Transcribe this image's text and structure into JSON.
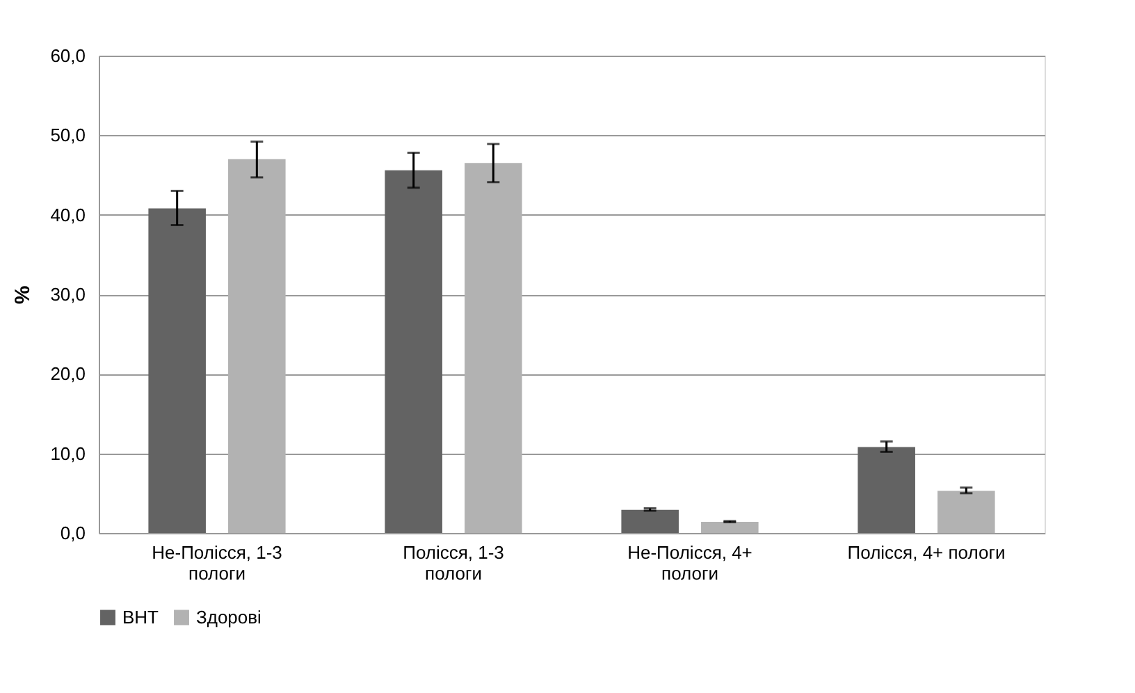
{
  "chart_data": {
    "type": "bar",
    "ylabel": "%",
    "categories": [
      "Не-Полісся, 1-3 пологи",
      "Полісся, 1-3 пологи",
      "Не-Полісся, 4+ пологи",
      "Полісся, 4+ пологи"
    ],
    "series": [
      {
        "name": "ВНТ",
        "color": "#636363",
        "values": [
          40.8,
          45.6,
          2.9,
          10.8
        ],
        "errors": [
          [
            38.7,
            43.0
          ],
          [
            43.4,
            47.8
          ],
          [
            2.8,
            3.1
          ],
          [
            10.2,
            11.5
          ]
        ]
      },
      {
        "name": "Здорові",
        "color": "#b2b2b2",
        "values": [
          47.0,
          46.5,
          1.4,
          5.3
        ],
        "errors": [
          [
            44.7,
            49.2
          ],
          [
            44.1,
            48.9
          ],
          [
            1.35,
            1.5
          ],
          [
            5.0,
            5.7
          ]
        ]
      }
    ],
    "ylim": [
      0,
      60
    ],
    "yticks": [
      {
        "value": 0,
        "label": "0,0"
      },
      {
        "value": 10,
        "label": "10,0"
      },
      {
        "value": 20,
        "label": "20,0"
      },
      {
        "value": 30,
        "label": "30,0"
      },
      {
        "value": 40,
        "label": "40,0"
      },
      {
        "value": 50,
        "label": "50,0"
      },
      {
        "value": 60,
        "label": "60,0"
      }
    ],
    "grid": "y",
    "legend": "bottom"
  }
}
